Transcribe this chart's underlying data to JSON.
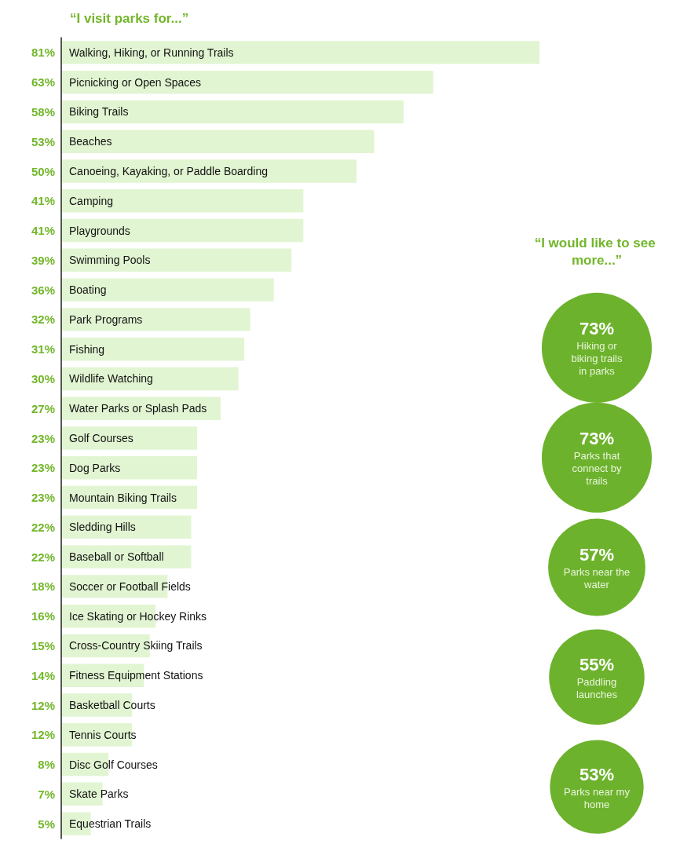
{
  "chart_data": [
    {
      "type": "bar",
      "orientation": "horizontal",
      "title": "“I visit parks for...”",
      "color": "#e2f5d2",
      "categories": [
        "Walking, Hiking, or Running Trails",
        "Picnicking or Open Spaces",
        "Biking Trails",
        "Beaches",
        "Canoeing, Kayaking, or Paddle Boarding",
        "Camping",
        "Playgrounds",
        "Swimming Pools",
        "Boating",
        "Park Programs",
        "Fishing",
        "Wildlife Watching",
        "Water Parks or Splash Pads",
        "Golf Courses",
        "Dog Parks",
        "Mountain Biking Trails",
        "Sledding Hills",
        "Baseball or Softball",
        "Soccer or Football Fields",
        "Ice Skating or Hockey Rinks",
        "Cross-Country Skiing Trails",
        "Fitness Equipment Stations",
        "Basketball Courts",
        "Tennis Courts",
        "Disc Golf Courses",
        "Skate Parks",
        "Equestrian Trails"
      ],
      "values": [
        81,
        63,
        58,
        53,
        50,
        41,
        41,
        39,
        36,
        32,
        31,
        30,
        27,
        23,
        23,
        23,
        22,
        22,
        18,
        16,
        15,
        14,
        12,
        12,
        8,
        7,
        5
      ],
      "value_labels": [
        "81%",
        "63%",
        "58%",
        "53%",
        "50%",
        "41%",
        "41%",
        "39%",
        "36%",
        "32%",
        "31%",
        "30%",
        "27%",
        "23%",
        "23%",
        "23%",
        "22%",
        "22%",
        "18%",
        "16%",
        "15%",
        "14%",
        "12%",
        "12%",
        "8%",
        "7%",
        "5%"
      ]
    },
    {
      "type": "other",
      "title": "“I would like to see more...”",
      "color": "#6db22c",
      "categories": [
        "Hiking or biking trails in parks",
        "Parks that connect by trails",
        "Parks near the water",
        "Paddling launches",
        "Parks near my home"
      ],
      "values": [
        73,
        73,
        57,
        55,
        53
      ],
      "value_labels": [
        "73%",
        "73%",
        "57%",
        "55%",
        "53%"
      ]
    }
  ]
}
